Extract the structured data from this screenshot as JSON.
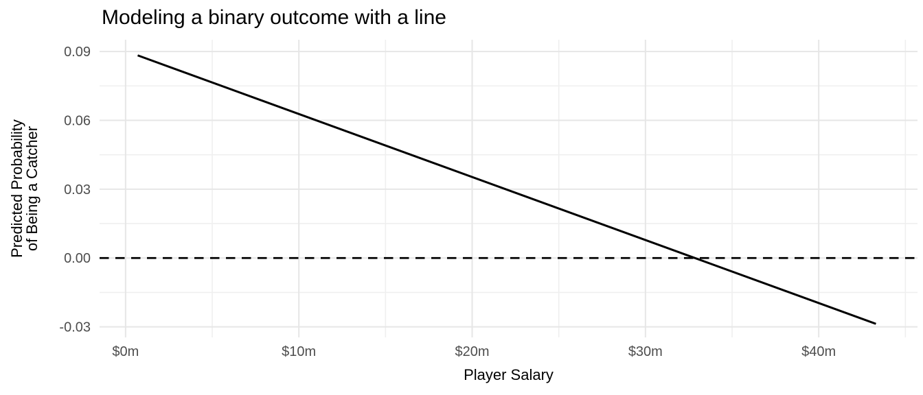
{
  "colors": {
    "background": "#ffffff",
    "grid_major": "#e6e6e6",
    "grid_minor": "#efefef",
    "tick_label": "#4d4d4d",
    "axis_title": "#000000",
    "title": "#000000",
    "line": "#000000"
  },
  "chart_data": {
    "type": "line",
    "title": "Modeling a binary outcome with a line",
    "xlabel": "Player Salary",
    "ylabel_lines": [
      "Predicted Probability",
      "of Being a Catcher"
    ],
    "xlim": [
      -1.5,
      45.7
    ],
    "ylim": [
      -0.0346,
      0.0951
    ],
    "grid": true,
    "legend": "none",
    "x_ticks": [
      {
        "value": 0,
        "label": "$0m"
      },
      {
        "value": 10,
        "label": "$10m"
      },
      {
        "value": 20,
        "label": "$20m"
      },
      {
        "value": 30,
        "label": "$30m"
      },
      {
        "value": 40,
        "label": "$40m"
      }
    ],
    "x_minor_ticks": [
      5,
      15,
      25,
      35,
      45
    ],
    "y_ticks": [
      {
        "value": 0.09,
        "label": "0.09"
      },
      {
        "value": 0.06,
        "label": "0.06"
      },
      {
        "value": 0.03,
        "label": "0.03"
      },
      {
        "value": 0.0,
        "label": "0.00"
      },
      {
        "value": -0.03,
        "label": "-0.03"
      }
    ],
    "y_minor_ticks": [
      0.075,
      0.045,
      0.015,
      -0.015
    ],
    "series": [
      {
        "name": "zero-reference-line",
        "type": "hline",
        "y": 0.0,
        "linetype": "dashed",
        "color": "#000000",
        "note": "dashed horizontal line at predicted probability 0"
      },
      {
        "name": "linear-fit-line",
        "type": "segment",
        "x1": 0.7,
        "y1": 0.0883,
        "x2": 43.3,
        "y2": -0.0287,
        "linetype": "solid",
        "color": "#000000",
        "note": "OLS line of probability of catcher vs salary ($m); crosses 0 near $33m"
      }
    ]
  }
}
